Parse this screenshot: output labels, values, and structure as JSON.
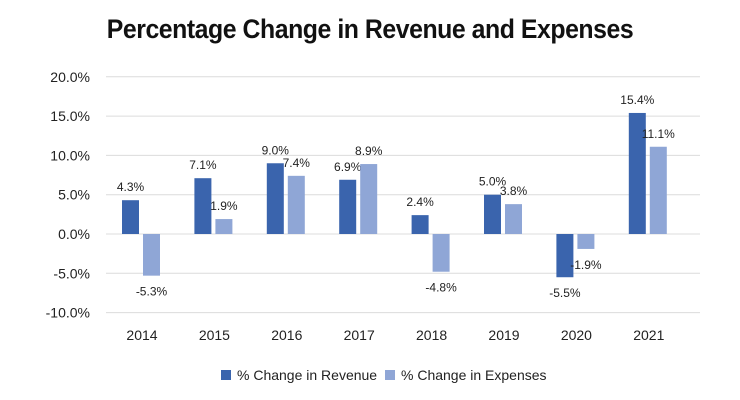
{
  "chart_data": {
    "type": "bar",
    "title": "Percentage Change in Revenue and Expenses",
    "categories": [
      "2014",
      "2015",
      "2016",
      "2017",
      "2018",
      "2019",
      "2020",
      "2021"
    ],
    "series": [
      {
        "name": "% Change in Revenue",
        "color": "#3a64ad",
        "values": [
          4.3,
          7.1,
          9.0,
          6.9,
          2.4,
          5.0,
          -5.5,
          15.4
        ],
        "labels": [
          "4.3%",
          "7.1%",
          "9.0%",
          "6.9%",
          "2.4%",
          "5.0%",
          "-5.5%",
          "15.4%"
        ]
      },
      {
        "name": "% Change in Expenses",
        "color": "#8fa6d6",
        "values": [
          -5.3,
          1.9,
          7.4,
          8.9,
          -4.8,
          3.8,
          -1.9,
          11.1
        ],
        "labels": [
          "-5.3%",
          "1.9%",
          "7.4%",
          "8.9%",
          "-4.8%",
          "3.8%",
          "-1.9%",
          "11.1%"
        ]
      }
    ],
    "yticks": [
      "20.0%",
      "15.0%",
      "10.0%",
      "5.0%",
      "0.0%",
      "-5.0%",
      "-10.0%"
    ],
    "ytick_values": [
      20,
      15,
      10,
      5,
      0,
      -5,
      -10
    ],
    "ylim": [
      -10,
      20
    ],
    "grid": true,
    "legend": "bottom",
    "xlabel": "",
    "ylabel": ""
  }
}
